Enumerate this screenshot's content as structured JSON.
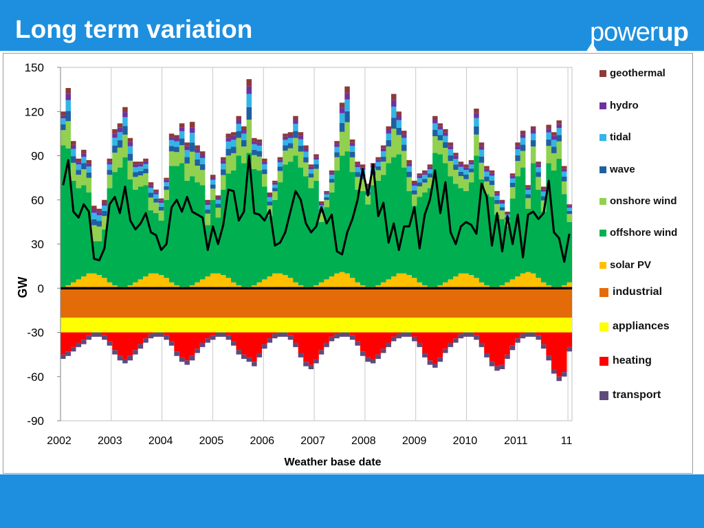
{
  "slide": {
    "title": "Long term variation",
    "logo_thin": "power",
    "logo_bold": "up"
  },
  "colors": {
    "background": "#1e8fde",
    "geothermal": "#8b3a3a",
    "hydro": "#7030a0",
    "tidal": "#33b5e5",
    "wave": "#1f5fa0",
    "onshore_wind": "#92d050",
    "offshore_wind": "#00b050",
    "solar_pv": "#ffc000",
    "industrial": "#e36c09",
    "appliances": "#ffff00",
    "heating": "#ff0000",
    "transport": "#604a7b",
    "net_line": "#000000"
  },
  "chart_data": {
    "type": "area",
    "ylabel": "GW",
    "xlabel": "Weather base date",
    "ylim": [
      -90,
      150
    ],
    "yticks": [
      150,
      120,
      90,
      60,
      30,
      0,
      -30,
      -60,
      -90
    ],
    "xticks": [
      "2002",
      "2003",
      "2004",
      "2005",
      "2006",
      "2007",
      "2008",
      "2009",
      "2010",
      "2011",
      "11"
    ],
    "x_start": "2002-01",
    "x_end": "2011-11",
    "grid": "vertical",
    "legend_position": "right",
    "series": [
      {
        "name": "geothermal",
        "key": "geothermal"
      },
      {
        "name": "hydro",
        "key": "hydro"
      },
      {
        "name": "tidal",
        "key": "tidal"
      },
      {
        "name": "wave",
        "key": "wave"
      },
      {
        "name": "onshore wind",
        "key": "onshore_wind"
      },
      {
        "name": "offshore wind",
        "key": "offshore_wind"
      },
      {
        "name": "solar PV",
        "key": "solar_pv"
      },
      {
        "name": "industrial",
        "key": "industrial"
      },
      {
        "name": "appliances",
        "key": "appliances"
      },
      {
        "name": "heating",
        "key": "heating"
      },
      {
        "name": "transport",
        "key": "transport"
      }
    ],
    "supply_total_gw": [
      120,
      136,
      100,
      88,
      94,
      87,
      56,
      54,
      60,
      88,
      108,
      112,
      123,
      102,
      86,
      86,
      88,
      72,
      67,
      61,
      75,
      105,
      104,
      112,
      99,
      113,
      97,
      93,
      60,
      77,
      63,
      89,
      105,
      106,
      117,
      110,
      142,
      102,
      101,
      88,
      65,
      73,
      89,
      105,
      106,
      117,
      106,
      97,
      84,
      91,
      59,
      66,
      80,
      100,
      126,
      137,
      101,
      86,
      84,
      71,
      85,
      89,
      97,
      110,
      132,
      120,
      107,
      87,
      73,
      78,
      80,
      84,
      117,
      112,
      108,
      99,
      92,
      86,
      84,
      87,
      122,
      99,
      83,
      80,
      66,
      60,
      52,
      78,
      99,
      107,
      70,
      110,
      86,
      69,
      111,
      106,
      114,
      83,
      57
    ],
    "offshore_wind_gw": [
      97,
      95,
      73,
      68,
      70,
      65,
      32,
      32,
      40,
      68,
      79,
      82,
      89,
      74,
      67,
      69,
      70,
      53,
      51,
      46,
      60,
      83,
      83,
      85,
      73,
      76,
      72,
      70,
      43,
      60,
      48,
      67,
      78,
      80,
      90,
      85,
      92,
      81,
      80,
      69,
      49,
      60,
      72,
      84,
      86,
      90,
      82,
      76,
      68,
      73,
      45,
      55,
      65,
      80,
      90,
      93,
      79,
      67,
      66,
      57,
      70,
      73,
      77,
      85,
      89,
      91,
      82,
      66,
      56,
      62,
      65,
      68,
      92,
      91,
      85,
      76,
      71,
      68,
      66,
      72,
      90,
      74,
      64,
      62,
      50,
      47,
      42,
      61,
      76,
      82,
      54,
      85,
      67,
      52,
      85,
      80,
      88,
      64,
      45
    ],
    "solar_pv_gw": [
      1,
      2,
      4,
      6,
      8,
      10,
      10,
      9,
      7,
      4,
      2,
      1,
      1,
      2,
      4,
      6,
      8,
      10,
      10,
      9,
      7,
      4,
      2,
      1,
      1,
      2,
      4,
      6,
      8,
      10,
      10,
      9,
      7,
      4,
      2,
      1,
      1,
      2,
      4,
      6,
      8,
      10,
      10,
      9,
      7,
      4,
      2,
      1,
      1,
      2,
      4,
      6,
      8,
      10,
      11,
      10,
      7,
      4,
      2,
      1,
      1,
      2,
      4,
      6,
      8,
      10,
      10,
      9,
      7,
      4,
      2,
      1,
      1,
      2,
      4,
      6,
      8,
      10,
      10,
      9,
      7,
      4,
      2,
      1,
      1,
      2,
      4,
      6,
      8,
      10,
      11,
      10,
      7,
      4,
      2,
      1,
      1,
      2,
      4
    ],
    "net_line_gw": [
      70,
      87,
      52,
      48,
      57,
      52,
      20,
      19,
      27,
      57,
      62,
      51,
      69,
      46,
      40,
      44,
      51,
      38,
      36,
      26,
      30,
      55,
      60,
      52,
      62,
      52,
      50,
      48,
      26,
      42,
      30,
      43,
      67,
      66,
      46,
      52,
      90,
      51,
      50,
      46,
      53,
      29,
      31,
      38,
      52,
      66,
      60,
      44,
      38,
      42,
      55,
      44,
      50,
      25,
      23,
      38,
      47,
      60,
      81,
      63,
      84,
      49,
      58,
      31,
      44,
      26,
      42,
      42,
      55,
      27,
      50,
      60,
      80,
      51,
      72,
      38,
      30,
      42,
      45,
      43,
      37,
      71,
      62,
      29,
      51,
      25,
      49,
      30,
      50,
      21,
      50,
      52,
      47,
      51,
      73,
      38,
      34,
      18,
      37
    ],
    "industrial_gw": -20,
    "appliances_bottom_gw": -30,
    "heating_bottom_gw": [
      -45,
      -43,
      -40,
      -37,
      -35,
      -32,
      -30,
      -30,
      -32,
      -36,
      -42,
      -46,
      -48,
      -46,
      -42,
      -38,
      -34,
      -31,
      -30,
      -30,
      -32,
      -36,
      -43,
      -47,
      -49,
      -46,
      -41,
      -37,
      -34,
      -32,
      -30,
      -30,
      -32,
      -36,
      -42,
      -45,
      -47,
      -50,
      -44,
      -38,
      -34,
      -31,
      -30,
      -30,
      -32,
      -37,
      -44,
      -50,
      -52,
      -48,
      -42,
      -37,
      -33,
      -31,
      -30,
      -30,
      -32,
      -36,
      -43,
      -47,
      -48,
      -45,
      -41,
      -37,
      -33,
      -31,
      -30,
      -30,
      -33,
      -37,
      -44,
      -49,
      -51,
      -47,
      -41,
      -37,
      -34,
      -31,
      -30,
      -30,
      -32,
      -37,
      -44,
      -50,
      -53,
      -52,
      -45,
      -39,
      -34,
      -31,
      -30,
      -30,
      -32,
      -38,
      -46,
      -55,
      -60,
      -57,
      -40
    ],
    "transport_gw": 3
  }
}
